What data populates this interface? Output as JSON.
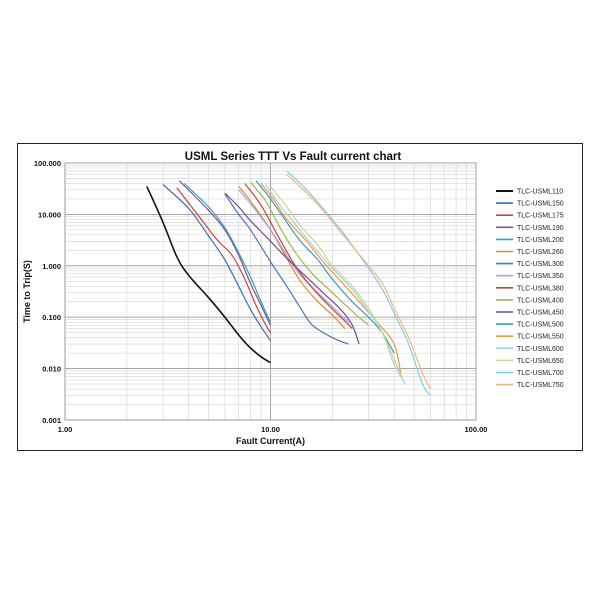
{
  "chart_data": {
    "type": "line",
    "title": "USML Series TTT Vs Fault current chart",
    "xlabel": "Fault Current(A)",
    "ylabel": "Time to Trip(S)",
    "x_scale": "log",
    "y_scale": "log",
    "xlim": [
      1,
      100
    ],
    "ylim": [
      0.001,
      100
    ],
    "x_ticks": [
      "1.00",
      "10.00",
      "100.00"
    ],
    "y_ticks": [
      "100.000",
      "10.000",
      "1.000",
      "0.100",
      "0.010",
      "0.001"
    ],
    "grid": true,
    "legend_position": "right",
    "series": [
      {
        "name": "TLC-USML110",
        "color": "#111111",
        "points": [
          [
            2.5,
            35
          ],
          [
            3,
            7
          ],
          [
            3.5,
            1.5
          ],
          [
            4,
            0.65
          ],
          [
            5,
            0.24
          ],
          [
            6,
            0.1
          ],
          [
            7,
            0.045
          ],
          [
            8,
            0.025
          ],
          [
            9,
            0.017
          ],
          [
            10,
            0.013
          ]
        ]
      },
      {
        "name": "TLC-USML150",
        "color": "#3a6db0",
        "points": [
          [
            3.0,
            38
          ],
          [
            4,
            13
          ],
          [
            5,
            3.8
          ],
          [
            6,
            1.3
          ],
          [
            7,
            0.4
          ],
          [
            8,
            0.14
          ],
          [
            9,
            0.065
          ],
          [
            10,
            0.035
          ]
        ]
      },
      {
        "name": "TLC-USML175",
        "color": "#d0433a",
        "points": [
          [
            3.5,
            33
          ],
          [
            4.5,
            9
          ],
          [
            5.5,
            3.2
          ],
          [
            6.5,
            1.6
          ],
          [
            7.5,
            0.55
          ],
          [
            8.5,
            0.17
          ],
          [
            9.5,
            0.07
          ],
          [
            10,
            0.05
          ]
        ]
      },
      {
        "name": "TLC-USML190",
        "color": "#7c4fa8",
        "points": [
          [
            3.6,
            45
          ],
          [
            5,
            12
          ],
          [
            6,
            5
          ],
          [
            7,
            1.6
          ],
          [
            8,
            0.45
          ],
          [
            9,
            0.17
          ],
          [
            10,
            0.07
          ]
        ]
      },
      {
        "name": "TLC-USML200",
        "color": "#35a7a7",
        "points": [
          [
            3.8,
            40
          ],
          [
            5,
            14
          ],
          [
            6,
            5.5
          ],
          [
            7,
            1.8
          ],
          [
            8,
            0.6
          ],
          [
            9,
            0.2
          ],
          [
            10,
            0.08
          ]
        ]
      },
      {
        "name": "TLC-USML260",
        "color": "#e08a2e",
        "points": [
          [
            7,
            35
          ],
          [
            8,
            18
          ],
          [
            10,
            5
          ],
          [
            12,
            1.4
          ],
          [
            14,
            0.5
          ],
          [
            17,
            0.2
          ],
          [
            20,
            0.11
          ],
          [
            23,
            0.06
          ]
        ]
      },
      {
        "name": "TLC-USML300",
        "color": "#4a78b8",
        "points": [
          [
            6,
            25
          ],
          [
            7,
            10
          ],
          [
            8,
            5
          ],
          [
            10,
            1.2
          ],
          [
            12,
            0.4
          ],
          [
            14,
            0.15
          ],
          [
            16,
            0.07
          ],
          [
            20,
            0.04
          ],
          [
            24,
            0.03
          ]
        ]
      },
      {
        "name": "TLC-USML350",
        "color": "#a9a4d8",
        "points": [
          [
            7,
            30
          ],
          [
            8,
            16
          ],
          [
            10,
            5
          ],
          [
            12,
            1.6
          ],
          [
            14,
            0.65
          ],
          [
            17,
            0.3
          ],
          [
            20,
            0.16
          ],
          [
            24,
            0.08
          ]
        ]
      },
      {
        "name": "TLC-USML380",
        "color": "#c4443d",
        "points": [
          [
            7.5,
            40
          ],
          [
            9,
            15
          ],
          [
            11,
            3.5
          ],
          [
            13,
            1.1
          ],
          [
            15,
            0.5
          ],
          [
            18,
            0.22
          ],
          [
            22,
            0.1
          ],
          [
            25,
            0.06
          ]
        ]
      },
      {
        "name": "TLC-USML400",
        "color": "#9aba4a",
        "points": [
          [
            8,
            42
          ],
          [
            9.5,
            18
          ],
          [
            11,
            6
          ],
          [
            13,
            2
          ],
          [
            16,
            0.7
          ],
          [
            20,
            0.3
          ],
          [
            25,
            0.13
          ],
          [
            30,
            0.07
          ]
        ]
      },
      {
        "name": "TLC-USML450",
        "color": "#6a4c9c",
        "points": [
          [
            6,
            26
          ],
          [
            7,
            14
          ],
          [
            8,
            7.5
          ],
          [
            10,
            3
          ],
          [
            12,
            1.4
          ],
          [
            15,
            0.6
          ],
          [
            18,
            0.3
          ],
          [
            22,
            0.14
          ],
          [
            25,
            0.07
          ],
          [
            27,
            0.03
          ]
        ]
      },
      {
        "name": "TLC-USML500",
        "color": "#3b9ac6",
        "points": [
          [
            8.5,
            45
          ],
          [
            10,
            20
          ],
          [
            12,
            7
          ],
          [
            14,
            3
          ],
          [
            17,
            1.3
          ],
          [
            20,
            0.55
          ],
          [
            25,
            0.2
          ],
          [
            30,
            0.1
          ],
          [
            35,
            0.05
          ],
          [
            40,
            0.02
          ]
        ]
      },
      {
        "name": "TLC-USML550",
        "color": "#f09a3c",
        "points": [
          [
            9,
            40
          ],
          [
            10.5,
            18
          ],
          [
            12,
            8
          ],
          [
            15,
            3
          ],
          [
            18,
            1.2
          ],
          [
            22,
            0.5
          ],
          [
            27,
            0.2
          ],
          [
            33,
            0.08
          ],
          [
            40,
            0.03
          ],
          [
            43,
            0.008
          ]
        ]
      },
      {
        "name": "TLC-USML600",
        "color": "#a8cde8",
        "points": [
          [
            9.5,
            38
          ],
          [
            11,
            16
          ],
          [
            13,
            7
          ],
          [
            16,
            2.5
          ],
          [
            20,
            0.9
          ],
          [
            25,
            0.35
          ],
          [
            30,
            0.13
          ],
          [
            35,
            0.05
          ],
          [
            40,
            0.015
          ],
          [
            45,
            0.005
          ]
        ]
      },
      {
        "name": "TLC-USML650",
        "color": "#c6dc8a",
        "points": [
          [
            10,
            35
          ],
          [
            12,
            14
          ],
          [
            14,
            6
          ],
          [
            17,
            2.5
          ],
          [
            20,
            1
          ],
          [
            25,
            0.4
          ],
          [
            30,
            0.15
          ],
          [
            35,
            0.05
          ],
          [
            40,
            0.012
          ],
          [
            44,
            0.006
          ]
        ]
      },
      {
        "name": "TLC-USML700",
        "color": "#7fcfe6",
        "points": [
          [
            12,
            70
          ],
          [
            15,
            30
          ],
          [
            18,
            13
          ],
          [
            22,
            5
          ],
          [
            26,
            2
          ],
          [
            30,
            0.9
          ],
          [
            35,
            0.35
          ],
          [
            40,
            0.12
          ],
          [
            47,
            0.03
          ],
          [
            55,
            0.005
          ],
          [
            60,
            0.003
          ]
        ]
      },
      {
        "name": "TLC-USML750",
        "color": "#f5b47a",
        "points": [
          [
            12,
            60
          ],
          [
            15,
            26
          ],
          [
            18,
            12
          ],
          [
            22,
            4.5
          ],
          [
            26,
            2
          ],
          [
            30,
            1
          ],
          [
            35,
            0.45
          ],
          [
            40,
            0.15
          ],
          [
            47,
            0.04
          ],
          [
            55,
            0.008
          ],
          [
            60,
            0.004
          ]
        ]
      }
    ]
  }
}
